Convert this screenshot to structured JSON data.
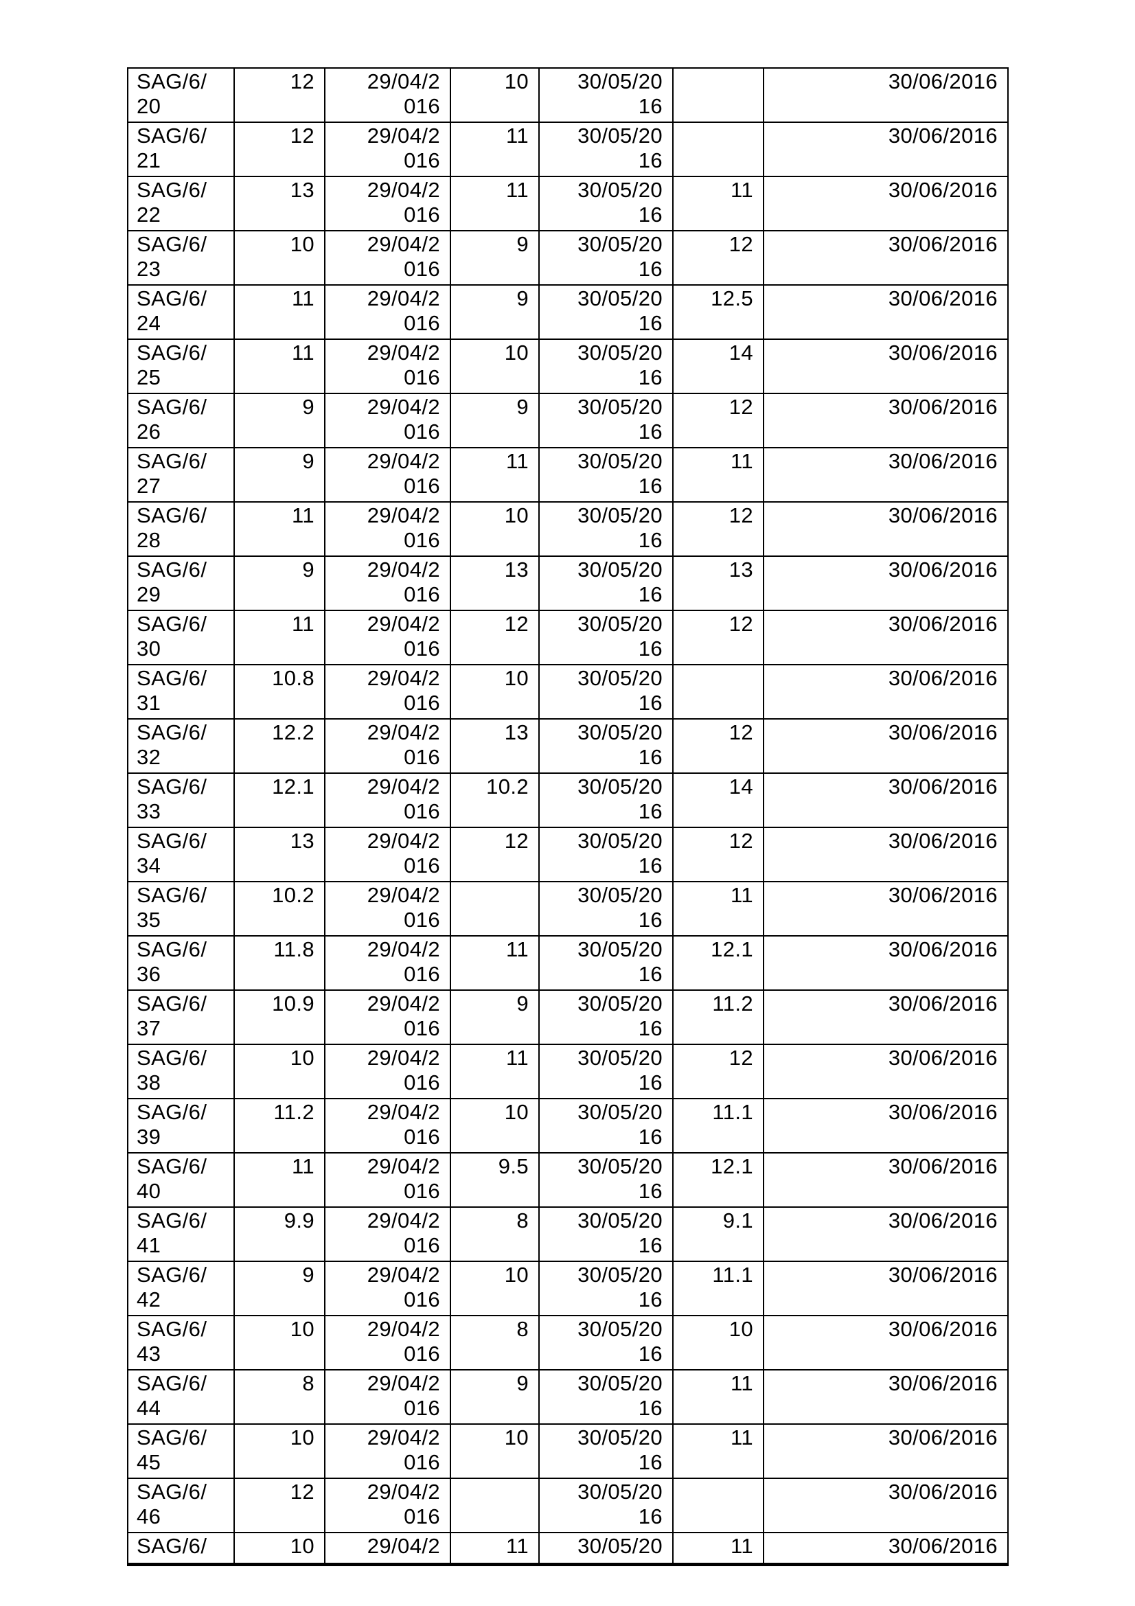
{
  "page": {
    "background_color": "#ffffff",
    "text_color": "#000000",
    "table_border_color": "#000000"
  },
  "table": {
    "rows": [
      [
        "SAG/6/\n20",
        "12",
        "29/04/2\n016",
        "10",
        "30/05/20\n16",
        "",
        "30/06/2016"
      ],
      [
        "SAG/6/\n21",
        "12",
        "29/04/2\n016",
        "11",
        "30/05/20\n16",
        "",
        "30/06/2016"
      ],
      [
        "SAG/6/\n22",
        "13",
        "29/04/2\n016",
        "11",
        "30/05/20\n16",
        "11",
        "30/06/2016"
      ],
      [
        "SAG/6/\n23",
        "10",
        "29/04/2\n016",
        "9",
        "30/05/20\n16",
        "12",
        "30/06/2016"
      ],
      [
        "SAG/6/\n24",
        "11",
        "29/04/2\n016",
        "9",
        "30/05/20\n16",
        "12.5",
        "30/06/2016"
      ],
      [
        "SAG/6/\n25",
        "11",
        "29/04/2\n016",
        "10",
        "30/05/20\n16",
        "14",
        "30/06/2016"
      ],
      [
        "SAG/6/\n26",
        "9",
        "29/04/2\n016",
        "9",
        "30/05/20\n16",
        "12",
        "30/06/2016"
      ],
      [
        "SAG/6/\n27",
        "9",
        "29/04/2\n016",
        "11",
        "30/05/20\n16",
        "11",
        "30/06/2016"
      ],
      [
        "SAG/6/\n28",
        "11",
        "29/04/2\n016",
        "10",
        "30/05/20\n16",
        "12",
        "30/06/2016"
      ],
      [
        "SAG/6/\n29",
        "9",
        "29/04/2\n016",
        "13",
        "30/05/20\n16",
        "13",
        "30/06/2016"
      ],
      [
        "SAG/6/\n30",
        "11",
        "29/04/2\n016",
        "12",
        "30/05/20\n16",
        "12",
        "30/06/2016"
      ],
      [
        "SAG/6/\n31",
        "10.8",
        "29/04/2\n016",
        "10",
        "30/05/20\n16",
        "",
        "30/06/2016"
      ],
      [
        "SAG/6/\n32",
        "12.2",
        "29/04/2\n016",
        "13",
        "30/05/20\n16",
        "12",
        "30/06/2016"
      ],
      [
        "SAG/6/\n33",
        "12.1",
        "29/04/2\n016",
        "10.2",
        "30/05/20\n16",
        "14",
        "30/06/2016"
      ],
      [
        "SAG/6/\n34",
        "13",
        "29/04/2\n016",
        "12",
        "30/05/20\n16",
        "12",
        "30/06/2016"
      ],
      [
        "SAG/6/\n35",
        "10.2",
        "29/04/2\n016",
        "",
        "30/05/20\n16",
        "11",
        "30/06/2016"
      ],
      [
        "SAG/6/\n36",
        "11.8",
        "29/04/2\n016",
        "11",
        "30/05/20\n16",
        "12.1",
        "30/06/2016"
      ],
      [
        "SAG/6/\n37",
        "10.9",
        "29/04/2\n016",
        "9",
        "30/05/20\n16",
        "11.2",
        "30/06/2016"
      ],
      [
        "SAG/6/\n38",
        "10",
        "29/04/2\n016",
        "11",
        "30/05/20\n16",
        "12",
        "30/06/2016"
      ],
      [
        "SAG/6/\n39",
        "11.2",
        "29/04/2\n016",
        "10",
        "30/05/20\n16",
        "11.1",
        "30/06/2016"
      ],
      [
        "SAG/6/\n40",
        "11",
        "29/04/2\n016",
        "9.5",
        "30/05/20\n16",
        "12.1",
        "30/06/2016"
      ],
      [
        "SAG/6/\n41",
        "9.9",
        "29/04/2\n016",
        "8",
        "30/05/20\n16",
        "9.1",
        "30/06/2016"
      ],
      [
        "SAG/6/\n42",
        "9",
        "29/04/2\n016",
        "10",
        "30/05/20\n16",
        "11.1",
        "30/06/2016"
      ],
      [
        "SAG/6/\n43",
        "10",
        "29/04/2\n016",
        "8",
        "30/05/20\n16",
        "10",
        "30/06/2016"
      ],
      [
        "SAG/6/\n44",
        "8",
        "29/04/2\n016",
        "9",
        "30/05/20\n16",
        "11",
        "30/06/2016"
      ],
      [
        "SAG/6/\n45",
        "10",
        "29/04/2\n016",
        "10",
        "30/05/20\n16",
        "11",
        "30/06/2016"
      ],
      [
        "SAG/6/\n46",
        "12",
        "29/04/2\n016",
        "",
        "30/05/20\n16",
        "",
        "30/06/2016"
      ]
    ],
    "partial_row": [
      "SAG/6/",
      "10",
      "29/04/2",
      "11",
      "30/05/20",
      "11",
      "30/06/2016"
    ]
  }
}
